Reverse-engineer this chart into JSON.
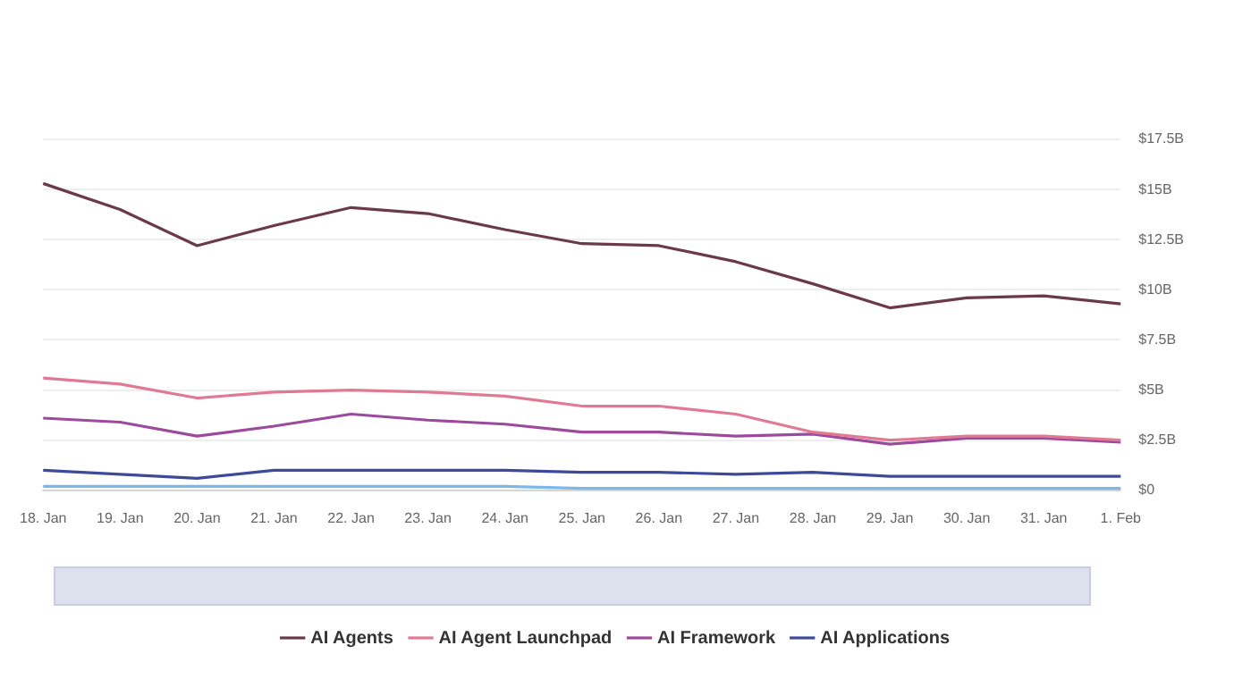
{
  "chart_data": {
    "type": "line",
    "categories": [
      "18. Jan",
      "19. Jan",
      "20. Jan",
      "21. Jan",
      "22. Jan",
      "23. Jan",
      "24. Jan",
      "25. Jan",
      "26. Jan",
      "27. Jan",
      "28. Jan",
      "29. Jan",
      "30. Jan",
      "31. Jan",
      "1. Feb"
    ],
    "series": [
      {
        "name": "AI Agents",
        "color": "#6b3a4a",
        "values": [
          15.3,
          14.0,
          12.2,
          13.2,
          14.1,
          13.8,
          13.0,
          12.3,
          12.2,
          11.4,
          10.3,
          9.1,
          9.6,
          9.7,
          9.3
        ]
      },
      {
        "name": "AI Agent Launchpad",
        "color": "#e07a93",
        "values": [
          5.6,
          5.3,
          4.6,
          4.9,
          5.0,
          4.9,
          4.7,
          4.2,
          4.2,
          3.8,
          2.9,
          2.5,
          2.7,
          2.7,
          2.5
        ]
      },
      {
        "name": "AI Framework",
        "color": "#9c4a9c",
        "values": [
          3.6,
          3.4,
          2.7,
          3.2,
          3.8,
          3.5,
          3.3,
          2.9,
          2.9,
          2.7,
          2.8,
          2.3,
          2.6,
          2.6,
          2.4
        ]
      },
      {
        "name": "AI Applications",
        "color": "#3d4a9a",
        "values": [
          1.0,
          0.8,
          0.6,
          1.0,
          1.0,
          1.0,
          1.0,
          0.9,
          0.9,
          0.8,
          0.9,
          0.7,
          0.7,
          0.7,
          0.7
        ]
      },
      {
        "color": "#7bb8e8",
        "values": [
          0.2,
          0.2,
          0.2,
          0.2,
          0.2,
          0.2,
          0.2,
          0.1,
          0.1,
          0.1,
          0.1,
          0.1,
          0.1,
          0.1,
          0.1
        ]
      }
    ],
    "ylim": [
      0,
      17.5
    ],
    "yticks": [
      {
        "value": 0,
        "label": "$0"
      },
      {
        "value": 2.5,
        "label": "$2.5B"
      },
      {
        "value": 5,
        "label": "$5B"
      },
      {
        "value": 7.5,
        "label": "$7.5B"
      },
      {
        "value": 10,
        "label": "$10B"
      },
      {
        "value": 12.5,
        "label": "$12.5B"
      },
      {
        "value": 15,
        "label": "$15B"
      },
      {
        "value": 17.5,
        "label": "$17.5B"
      }
    ],
    "grid": "y",
    "legend": "bottom",
    "marker": "none",
    "line_style": "solid"
  }
}
